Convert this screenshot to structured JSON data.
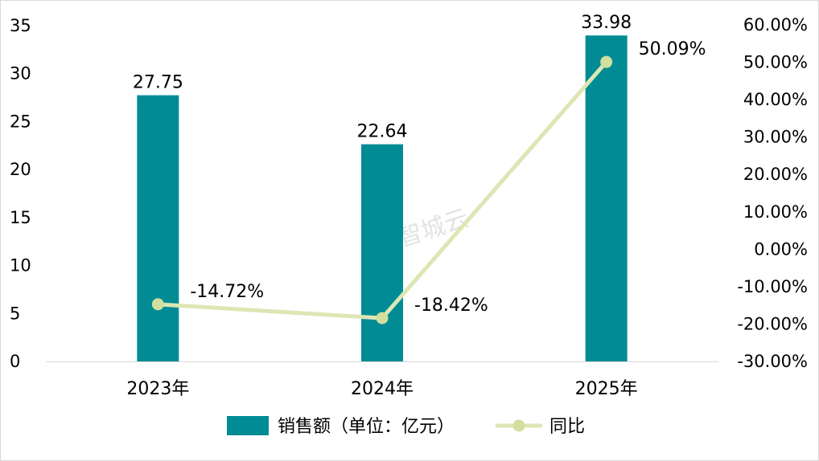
{
  "chart_data": {
    "type": "bar+line",
    "categories": [
      "2023年",
      "2024年",
      "2025年"
    ],
    "series": [
      {
        "name": "销售额（单位：亿元）",
        "type": "bar",
        "axis": "left",
        "values": [
          27.75,
          22.64,
          33.98
        ],
        "labels": [
          "27.75",
          "22.64",
          "33.98"
        ],
        "color": "#008b95"
      },
      {
        "name": "同比",
        "type": "line",
        "axis": "right",
        "values": [
          -14.72,
          -18.42,
          50.09
        ],
        "labels": [
          "-14.72%",
          "-18.42%",
          "50.09%"
        ],
        "color": "#dde6b4",
        "marker_color": "#d2df9f"
      }
    ],
    "y_left": {
      "min": 0,
      "max": 35,
      "step": 5,
      "ticks": [
        "0",
        "5",
        "10",
        "15",
        "20",
        "25",
        "30",
        "35"
      ]
    },
    "y_right": {
      "min": -30,
      "max": 60,
      "step": 10,
      "ticks": [
        "-30.00%",
        "-20.00%",
        "-10.00%",
        "0.00%",
        "10.00%",
        "20.00%",
        "30.00%",
        "40.00%",
        "50.00%",
        "60.00%"
      ]
    },
    "grid": false,
    "legend_position": "bottom-center",
    "watermark": "智城云"
  }
}
